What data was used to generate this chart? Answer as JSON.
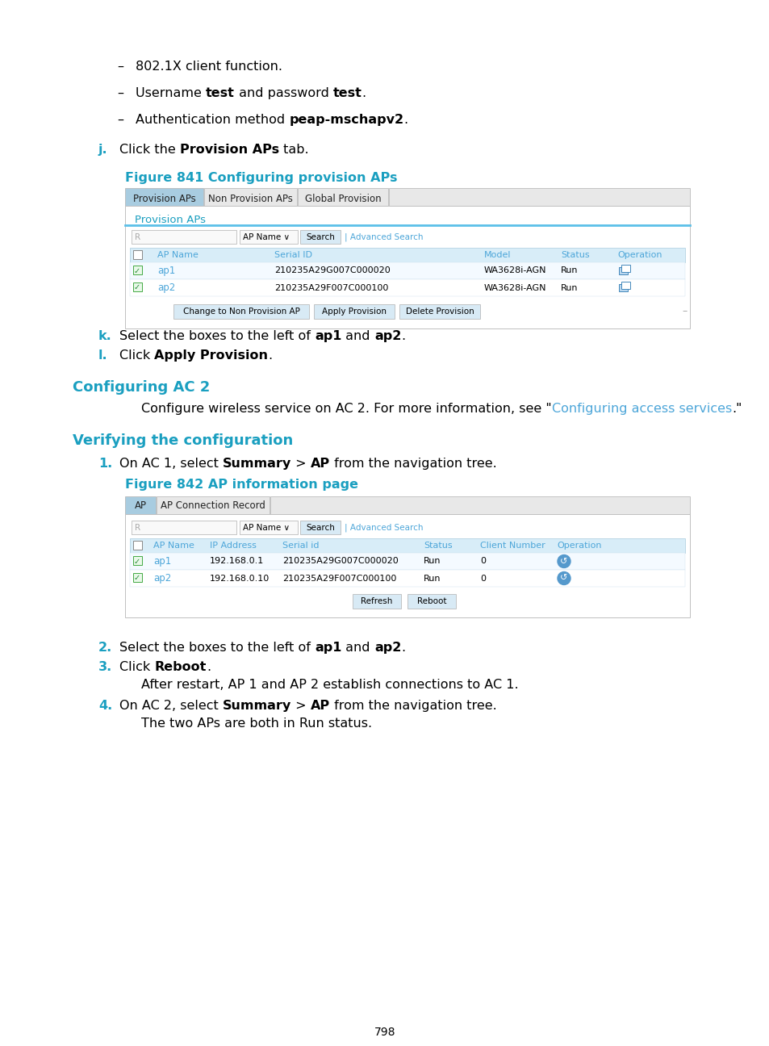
{
  "bg_color": "#ffffff",
  "text_color": "#000000",
  "cyan_color": "#1a9fc0",
  "blue_link_color": "#4da6d9",
  "tab_active_bg": "#a8cce0",
  "tab_inactive_bg": "#e8e8e8",
  "button_bg": "#d8eaf5",
  "page_number": "798",
  "bullet1": "802.1X client function.",
  "bullet2_pre": "Username ",
  "bullet2_bold1": "test",
  "bullet2_mid": " and password ",
  "bullet2_bold2": "test",
  "bullet2_post": ".",
  "bullet3_pre": "Authentication method ",
  "bullet3_bold": "peap-mschapv2",
  "bullet3_post": ".",
  "stepj_pre": "Click the ",
  "stepj_bold": "Provision APs",
  "stepj_post": " tab.",
  "fig841_title": "Figure 841 Configuring provision APs",
  "tab1_tabs": [
    "Provision APs",
    "Non Provision APs",
    "Global Provision"
  ],
  "tab1_label": "Provision APs",
  "tab1_headers": [
    "AP Name",
    "Serial ID",
    "Model",
    "Status",
    "Operation"
  ],
  "tab1_rows": [
    [
      "ap1",
      "210235A29G007C000020",
      "WA3628i-AGN",
      "Run"
    ],
    [
      "ap2",
      "210235A29F007C000100",
      "WA3628i-AGN",
      "Run"
    ]
  ],
  "buttons1": [
    "Change to Non Provision AP",
    "Apply Provision",
    "Delete Provision"
  ],
  "stepk_pre": "Select the boxes to the left of ",
  "stepk_b1": "ap1",
  "stepk_mid": " and ",
  "stepk_b2": "ap2",
  "stepk_post": ".",
  "stepl_pre": "Click ",
  "stepl_bold": "Apply Provision",
  "stepl_post": ".",
  "section_config": "Configuring AC 2",
  "config_pre": "Configure wireless service on AC 2. For more information, see \"",
  "config_link": "Configuring access services",
  "config_post": ".\"",
  "section_verify": "Verifying the configuration",
  "step1_pre": "On AC 1, select ",
  "step1_b1": "Summary",
  "step1_mid": " > ",
  "step1_b2": "AP",
  "step1_post": " from the navigation tree.",
  "fig842_title": "Figure 842 AP information page",
  "tab2_tabs": [
    "AP",
    "AP Connection Record"
  ],
  "tab2_headers": [
    "AP Name",
    "IP Address",
    "Serial id",
    "Status",
    "Client Number",
    "Operation"
  ],
  "tab2_rows": [
    [
      "ap1",
      "192.168.0.1",
      "210235A29G007C000020",
      "Run",
      "0"
    ],
    [
      "ap2",
      "192.168.0.10",
      "210235A29F007C000100",
      "Run",
      "0"
    ]
  ],
  "buttons2": [
    "Refresh",
    "Reboot"
  ],
  "step2_pre": "Select the boxes to the left of ",
  "step2_b1": "ap1",
  "step2_mid": " and ",
  "step2_b2": "ap2",
  "step2_post": ".",
  "step3_pre": "Click ",
  "step3_bold": "Reboot",
  "step3_post": ".",
  "step3_sub": "After restart, AP 1 and AP 2 establish connections to AC 1.",
  "step4_pre": "On AC 2, select ",
  "step4_b1": "Summary",
  "step4_mid": " > ",
  "step4_b2": "AP",
  "step4_post": " from the navigation tree.",
  "step4_sub": "The two APs are both in Run status."
}
